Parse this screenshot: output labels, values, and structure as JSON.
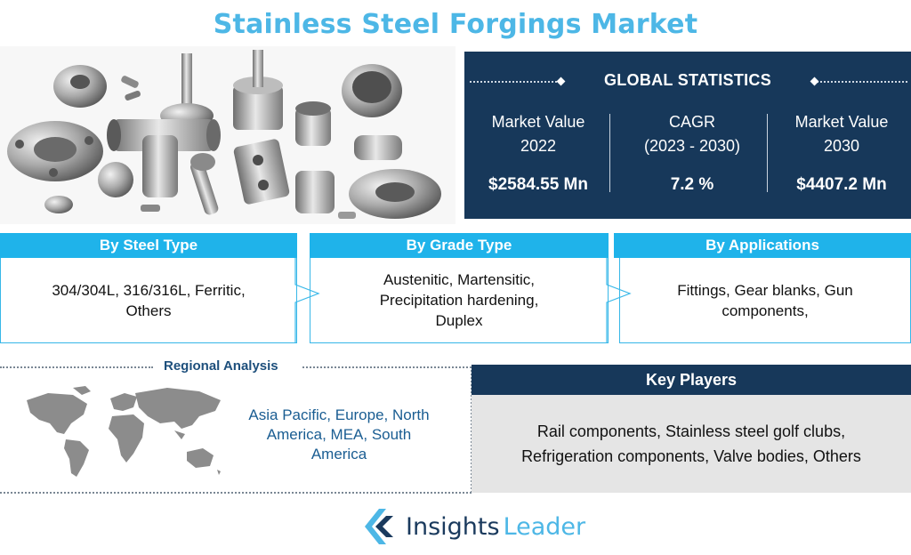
{
  "title": "Stainless Steel Forgings Market",
  "colors": {
    "title": "#4db7e6",
    "navy": "#17385a",
    "cyan": "#1fb3ea",
    "region_text": "#1a5d92",
    "key_bg": "#e5e5e5"
  },
  "hero_image": {
    "icon": "forged-parts-photo-icon"
  },
  "global_statistics": {
    "heading": "GLOBAL STATISTICS",
    "columns": [
      {
        "label_line1": "Market Value",
        "label_line2": "2022",
        "value": "$2584.55 Mn"
      },
      {
        "label_line1": "CAGR",
        "label_line2": "(2023 - 2030)",
        "value": "7.2 %"
      },
      {
        "label_line1": "Market Value",
        "label_line2": "2030",
        "value": "$4407.2 Mn"
      }
    ]
  },
  "segments": [
    {
      "title": "By Steel Type",
      "text": "304/304L, 316/316L, Ferritic, Others"
    },
    {
      "title": "By Grade Type",
      "text": "Austenitic, Martensitic, Precipitation hardening, Duplex"
    },
    {
      "title": "By Applications",
      "text": "Fittings, Gear blanks, Gun components,"
    }
  ],
  "regional": {
    "title": "Regional Analysis",
    "map_icon": "world-map-icon",
    "regions": "Asia Pacific, Europe, North America, MEA, South America"
  },
  "key_players": {
    "title": "Key Players",
    "text": "Rail components, Stainless steel golf clubs, Refrigeration components, Valve bodies, Others"
  },
  "brand": {
    "word1": "Insights",
    "word2": "Leader",
    "icon": "insights-leader-logo-icon"
  }
}
